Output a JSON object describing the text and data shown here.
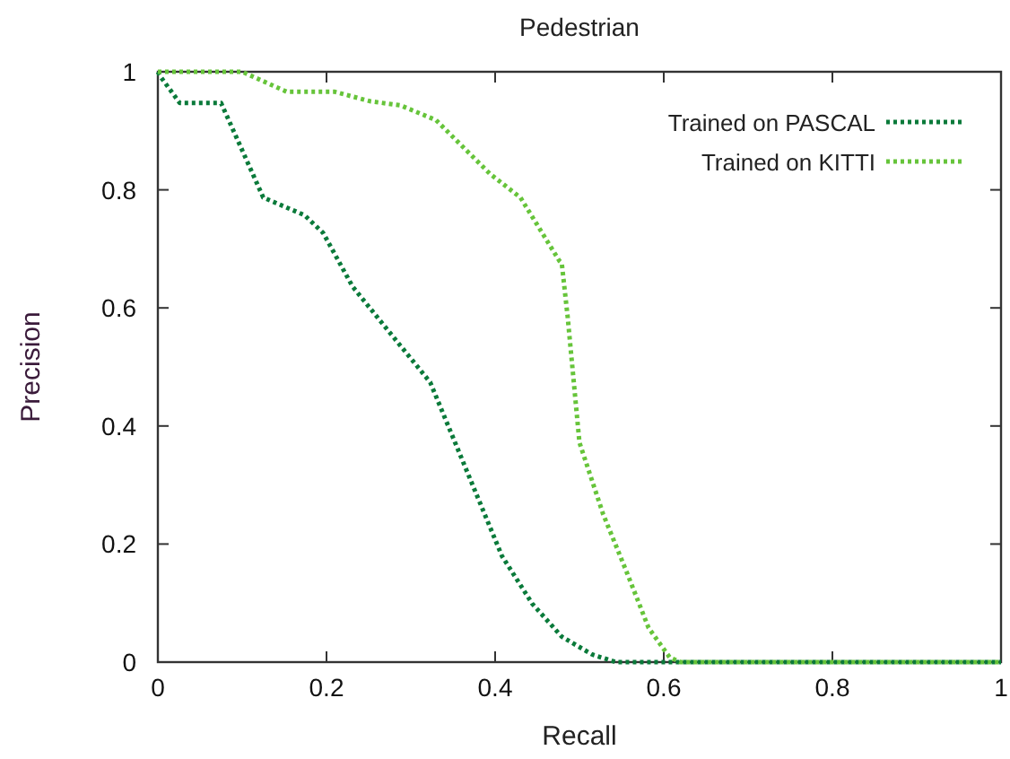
{
  "chart_data": {
    "type": "line",
    "title": "Pedestrian",
    "xlabel": "Recall",
    "ylabel": "Precision",
    "xlim": [
      0,
      1
    ],
    "ylim": [
      0,
      1
    ],
    "xticks": [
      0,
      0.2,
      0.4,
      0.6,
      0.8,
      1
    ],
    "yticks": [
      0,
      0.2,
      0.4,
      0.6,
      0.8,
      1
    ],
    "legend": "top right",
    "line_style": "dotted",
    "grid": false,
    "series": [
      {
        "name": "Trained on PASCAL",
        "color": "#0a7a3a",
        "x": [
          0,
          0.004,
          0.026,
          0.075,
          0.125,
          0.174,
          0.196,
          0.231,
          0.274,
          0.323,
          0.373,
          0.408,
          0.444,
          0.479,
          0.515,
          0.543,
          0.6,
          1
        ],
        "values": [
          1,
          0.99,
          0.947,
          0.947,
          0.787,
          0.757,
          0.727,
          0.636,
          0.56,
          0.474,
          0.301,
          0.18,
          0.099,
          0.043,
          0.013,
          0,
          0,
          0
        ]
      },
      {
        "name": "Trained on KITTI",
        "color": "#66c43a",
        "x": [
          0,
          0.1,
          0.153,
          0.21,
          0.252,
          0.288,
          0.33,
          0.394,
          0.43,
          0.476,
          0.479,
          0.486,
          0.5,
          0.528,
          0.557,
          0.582,
          0.607,
          0.62,
          1
        ],
        "values": [
          1,
          1,
          0.966,
          0.966,
          0.95,
          0.943,
          0.918,
          0.827,
          0.787,
          0.68,
          0.676,
          0.585,
          0.372,
          0.251,
          0.149,
          0.058,
          0.008,
          0,
          0
        ]
      }
    ]
  }
}
